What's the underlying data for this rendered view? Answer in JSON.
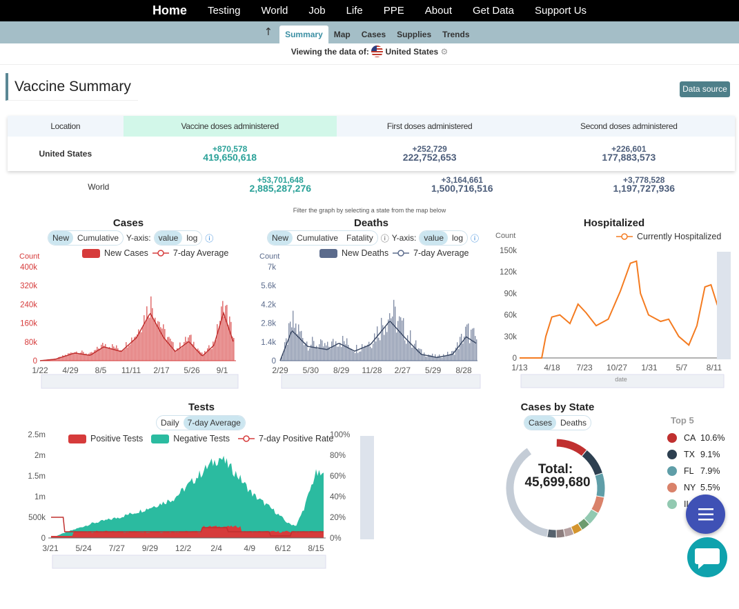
{
  "nav": {
    "home": "Home",
    "items": [
      "Testing",
      "World",
      "Job",
      "Life",
      "PPE",
      "About",
      "Get Data",
      "Support Us"
    ]
  },
  "subnav": {
    "up_icon": "arrow-up-icon",
    "tabs": [
      "Summary",
      "Map",
      "Cases",
      "Supplies",
      "Trends"
    ],
    "active": "Summary"
  },
  "viewing": {
    "prefix": "Viewing the data of:",
    "location": "United States",
    "flag_icon": "us-flag-icon",
    "settings_icon": "gear-icon"
  },
  "section": {
    "title": "Vaccine Summary",
    "data_source": "Data source"
  },
  "vaccine_table": {
    "headers": [
      "Location",
      "Vaccine doses administered",
      "First doses administered",
      "Second doses administered"
    ],
    "rows": [
      {
        "location": "United States",
        "doses_delta": "+870,578",
        "doses": "419,650,618",
        "first_delta": "+252,729",
        "first": "222,752,653",
        "second_delta": "+226,601",
        "second": "177,883,573"
      },
      {
        "location": "World",
        "doses_delta": "+53,701,648",
        "doses": "2,885,287,276",
        "first_delta": "+3,164,661",
        "first": "1,500,716,516",
        "second_delta": "+3,778,528",
        "second": "1,197,727,936"
      }
    ]
  },
  "filter_note": "Filter the graph by selecting a state from the map below",
  "cases": {
    "title": "Cases",
    "toggle": [
      "New",
      "Cumulative"
    ],
    "yaxis_label": "Y-axis:",
    "yaxis": [
      "value",
      "log"
    ],
    "legend": [
      "New Cases",
      "7-day Average"
    ],
    "unit": "Count",
    "yticks": [
      "400k",
      "320k",
      "240k",
      "160k",
      "80k",
      "0"
    ],
    "xticks": [
      "1/22",
      "4/29",
      "8/5",
      "11/11",
      "2/17",
      "5/26",
      "9/1"
    ],
    "color": "#d63b3b"
  },
  "deaths": {
    "title": "Deaths",
    "toggle": [
      "New",
      "Cumulative",
      "Fatality"
    ],
    "yaxis_label": "Y-axis:",
    "yaxis": [
      "value",
      "log"
    ],
    "legend": [
      "New Deaths",
      "7-day Average"
    ],
    "unit": "Count",
    "yticks": [
      "7k",
      "5.6k",
      "4.2k",
      "2.8k",
      "1.4k",
      "0"
    ],
    "xticks": [
      "2/29",
      "5/30",
      "8/29",
      "11/28",
      "2/27",
      "5/29",
      "8/28"
    ],
    "color": "#5b6b8c"
  },
  "hospitalized": {
    "title": "Hospitalized",
    "legend": [
      "Currently Hospitalized"
    ],
    "unit": "Count",
    "yticks": [
      "150k",
      "120k",
      "90k",
      "60k",
      "30k",
      "0"
    ],
    "xticks": [
      "1/13",
      "4/18",
      "7/23",
      "10/27",
      "1/31",
      "5/7",
      "8/11"
    ],
    "zoom_label": "date",
    "color": "#f47b20"
  },
  "tests": {
    "title": "Tests",
    "toggle": [
      "Daily",
      "7-day Average"
    ],
    "legend": [
      "Positive Tests",
      "Negative Tests",
      "7-day Positive Rate"
    ],
    "yticks": [
      "2.5m",
      "2m",
      "1.5m",
      "1m",
      "500k",
      "0"
    ],
    "y2ticks": [
      "100%",
      "80%",
      "60%",
      "40%",
      "20%",
      "0%"
    ],
    "xticks": [
      "3/21",
      "5/24",
      "7/27",
      "9/29",
      "12/2",
      "2/4",
      "4/9",
      "6/12",
      "8/15"
    ],
    "colors": {
      "positive": "#d63b3b",
      "negative": "#2bbba0"
    }
  },
  "cases_by_state": {
    "title": "Cases by State",
    "toggle": [
      "Cases",
      "Deaths"
    ],
    "total_label": "Total:",
    "total": "45,699,680",
    "top5_title": "Top 5",
    "top5": [
      {
        "state": "CA",
        "pct": "10.6%",
        "color": "#c0302f"
      },
      {
        "state": "TX",
        "pct": "9.1%",
        "color": "#2d3f50"
      },
      {
        "state": "FL",
        "pct": "7.9%",
        "color": "#5f9ea8"
      },
      {
        "state": "NY",
        "pct": "5.5%",
        "color": "#d9826a"
      },
      {
        "state": "IL",
        "pct": "",
        "color": "#92c9b1"
      }
    ]
  },
  "fab": {
    "menu_icon": "menu-icon",
    "chat_icon": "chat-icon"
  }
}
